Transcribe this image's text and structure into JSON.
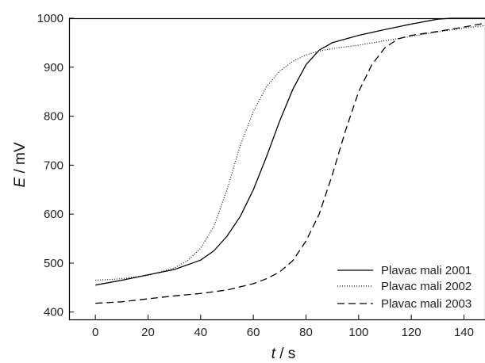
{
  "chart_data": {
    "type": "line",
    "xlabel_var": "t",
    "xlabel_unit": " / s",
    "ylabel_var": "E",
    "ylabel_unit": " / mV",
    "xlim": [
      -10,
      148
    ],
    "ylim": [
      385,
      1000
    ],
    "x_ticks": [
      0,
      20,
      40,
      60,
      80,
      100,
      120,
      140
    ],
    "y_ticks": [
      400,
      500,
      600,
      700,
      800,
      900,
      1000
    ],
    "grid": false,
    "legend_position": "bottom-right",
    "series": [
      {
        "name": "Plavac mali 2001",
        "style": "solid",
        "points": [
          [
            0,
            455
          ],
          [
            10,
            465
          ],
          [
            20,
            476
          ],
          [
            30,
            487
          ],
          [
            40,
            506
          ],
          [
            45,
            525
          ],
          [
            50,
            555
          ],
          [
            55,
            595
          ],
          [
            60,
            650
          ],
          [
            65,
            717
          ],
          [
            70,
            790
          ],
          [
            75,
            855
          ],
          [
            80,
            905
          ],
          [
            85,
            935
          ],
          [
            90,
            950
          ],
          [
            100,
            965
          ],
          [
            110,
            977
          ],
          [
            120,
            988
          ],
          [
            130,
            998
          ],
          [
            135,
            1000
          ],
          [
            148,
            1000
          ]
        ]
      },
      {
        "name": "Plavac mali 2002",
        "style": "dotted",
        "points": [
          [
            0,
            465
          ],
          [
            10,
            468
          ],
          [
            20,
            475
          ],
          [
            30,
            490
          ],
          [
            35,
            505
          ],
          [
            40,
            530
          ],
          [
            45,
            575
          ],
          [
            50,
            650
          ],
          [
            55,
            740
          ],
          [
            60,
            810
          ],
          [
            65,
            860
          ],
          [
            70,
            892
          ],
          [
            75,
            912
          ],
          [
            80,
            925
          ],
          [
            85,
            933
          ],
          [
            90,
            938
          ],
          [
            100,
            945
          ],
          [
            110,
            954
          ],
          [
            120,
            963
          ],
          [
            130,
            972
          ],
          [
            140,
            980
          ],
          [
            148,
            985
          ]
        ]
      },
      {
        "name": "Plavac mali 2003",
        "style": "dashed",
        "points": [
          [
            0,
            418
          ],
          [
            10,
            421
          ],
          [
            20,
            427
          ],
          [
            30,
            433
          ],
          [
            40,
            438
          ],
          [
            50,
            445
          ],
          [
            60,
            458
          ],
          [
            65,
            468
          ],
          [
            70,
            482
          ],
          [
            75,
            505
          ],
          [
            80,
            545
          ],
          [
            85,
            600
          ],
          [
            90,
            680
          ],
          [
            95,
            770
          ],
          [
            100,
            850
          ],
          [
            105,
            905
          ],
          [
            110,
            940
          ],
          [
            115,
            958
          ],
          [
            120,
            965
          ],
          [
            130,
            973
          ],
          [
            140,
            982
          ],
          [
            148,
            990
          ]
        ]
      }
    ]
  }
}
